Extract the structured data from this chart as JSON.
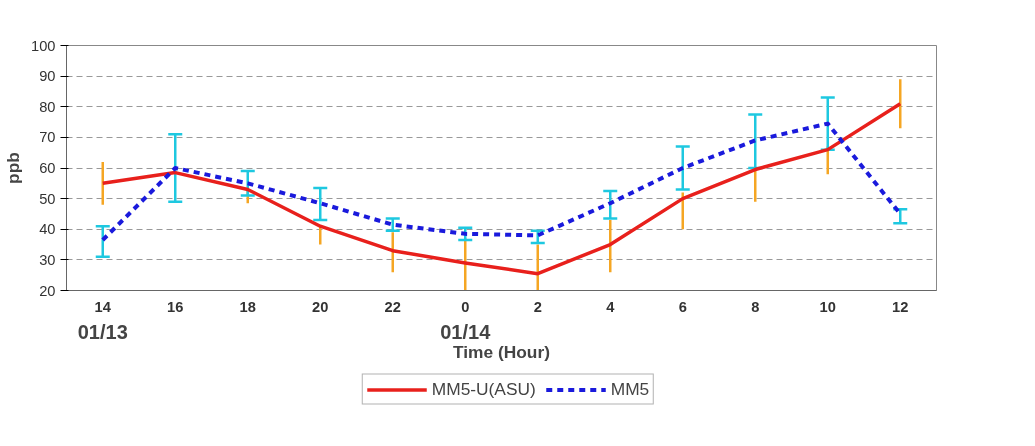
{
  "chart_data": {
    "type": "line",
    "xlabel": "Time (Hour)",
    "ylabel": "ppb",
    "categories": [
      "14",
      "16",
      "18",
      "20",
      "22",
      "0",
      "2",
      "4",
      "6",
      "8",
      "10",
      "12"
    ],
    "ylim": [
      20,
      100
    ],
    "yticks": [
      20,
      30,
      40,
      50,
      60,
      70,
      80,
      90,
      100
    ],
    "grid": "y",
    "legend": "bottom",
    "marker": "none",
    "annotations": [
      "01/13",
      "01/14"
    ],
    "series": [
      {
        "name": "MM5-U(ASU)",
        "color": "#e8201c",
        "line_style": "solid",
        "values": [
          55,
          58.5,
          53,
          41,
          33,
          29,
          25.5,
          35,
          50,
          59.5,
          66,
          81
        ],
        "errors": [
          [
            48,
            62
          ],
          null,
          [
            48.5,
            53
          ],
          [
            35,
            41
          ],
          [
            26,
            39
          ],
          [
            20,
            37
          ],
          [
            20,
            35
          ],
          [
            26,
            43
          ],
          [
            40,
            52
          ],
          [
            49,
            60
          ],
          [
            58,
            67
          ],
          [
            73,
            89
          ]
        ]
      },
      {
        "name": "MM5",
        "color": "#1a1adc",
        "line_style": "dashed",
        "values": [
          36.5,
          60,
          55,
          48.5,
          41.5,
          38.5,
          38,
          48.5,
          60,
          69,
          74.5,
          45
        ],
        "errors": [
          [
            31,
            41
          ],
          [
            49,
            71
          ],
          [
            51,
            59
          ],
          [
            43,
            53.5
          ],
          [
            39.5,
            43.5
          ],
          [
            36.5,
            40.5
          ],
          [
            35.5,
            39.5
          ],
          [
            43.5,
            52.5
          ],
          [
            53,
            67
          ],
          [
            60,
            77.5
          ],
          [
            66,
            83
          ],
          [
            42,
            46.5
          ]
        ]
      }
    ]
  }
}
